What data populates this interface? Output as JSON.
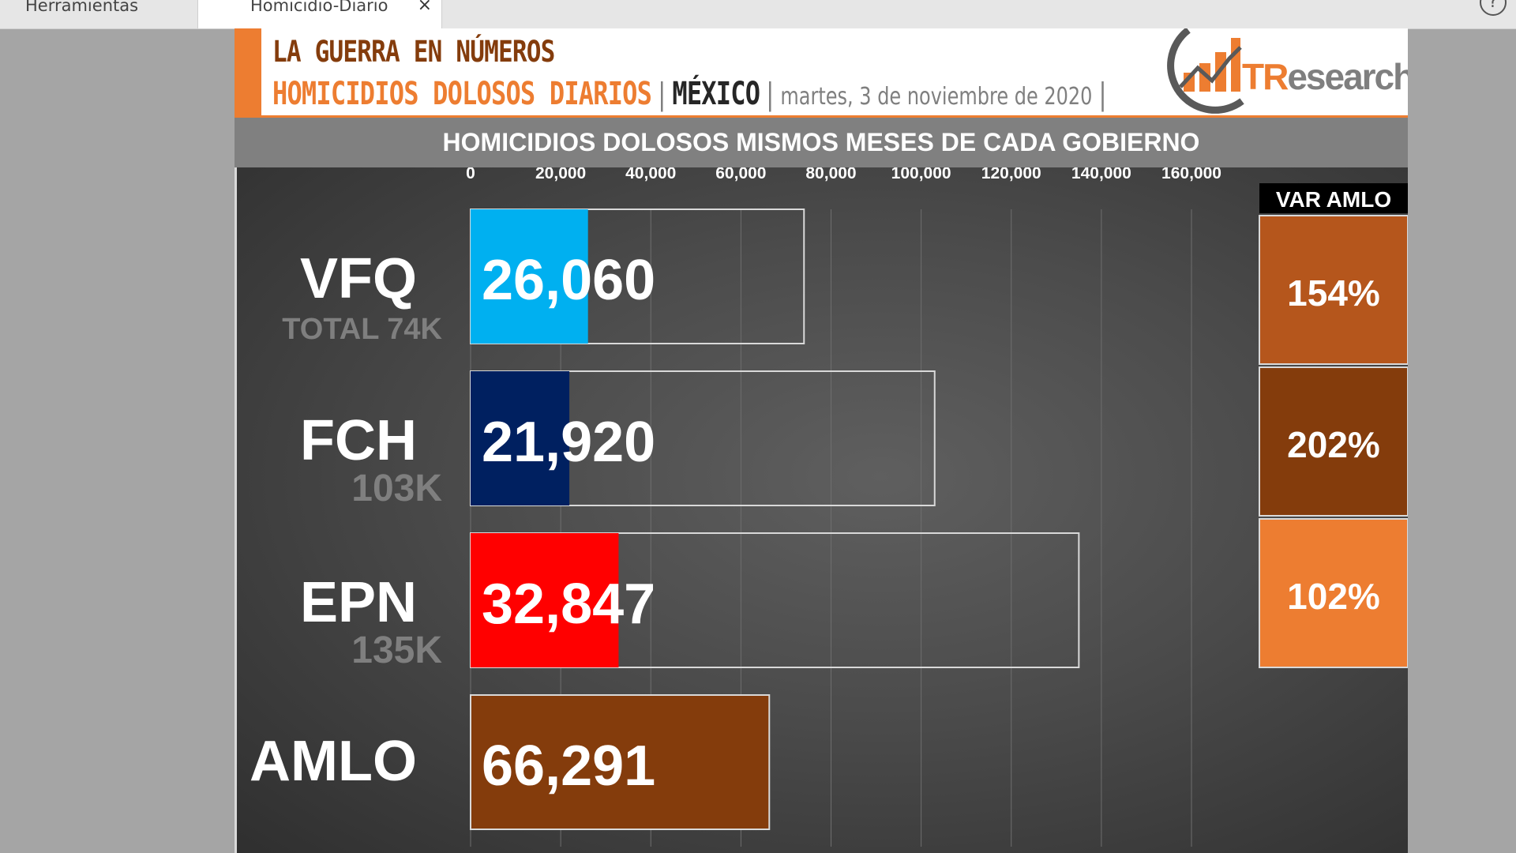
{
  "tabs": [
    {
      "label": "Herramientas"
    },
    {
      "label": "Homicidio-Diario",
      "close": "×"
    }
  ],
  "help": {
    "glyph": "?"
  },
  "header": {
    "title": "LA GUERRA EN NÚMEROS",
    "subtitle": "HOMICIDIOS DOLOSOS DIARIOS",
    "sep": "|",
    "country": "MÉXICO",
    "date": "martes, 3 de noviembre de 2020",
    "logo_prefix": "TR",
    "logo_suffix": "esearch"
  },
  "chart_title": "HOMICIDIOS DOLOSOS MISMOS MESES DE CADA GOBIERNO",
  "var_header": "VAR AMLO",
  "colors": {
    "vfq": "#00b0f0",
    "fch": "#002060",
    "epn": "#ff0000",
    "amlo": "#843c0c",
    "var1": "#b5561c",
    "var2": "#843c0c",
    "var3": "#ed7d31"
  },
  "chart_data": {
    "type": "bar",
    "orientation": "horizontal",
    "title": "HOMICIDIOS DOLOSOS MISMOS MESES DE CADA GOBIERNO",
    "xlim": [
      0,
      160000
    ],
    "xticks": [
      "0",
      "20,000",
      "40,000",
      "60,000",
      "80,000",
      "100,000",
      "120,000",
      "140,000",
      "160,000"
    ],
    "grid": true,
    "categories": [
      "VFQ",
      "FCH",
      "EPN",
      "AMLO"
    ],
    "sublabels": [
      "TOTAL 74K",
      "103K",
      "135K",
      ""
    ],
    "values": [
      26060,
      21920,
      32847,
      66291
    ],
    "value_labels": [
      "26,060",
      "21,920",
      "32,847",
      "66,291"
    ],
    "totals": [
      74000,
      103000,
      135000,
      66291
    ],
    "var_amlo": [
      "154%",
      "202%",
      "102%"
    ]
  }
}
